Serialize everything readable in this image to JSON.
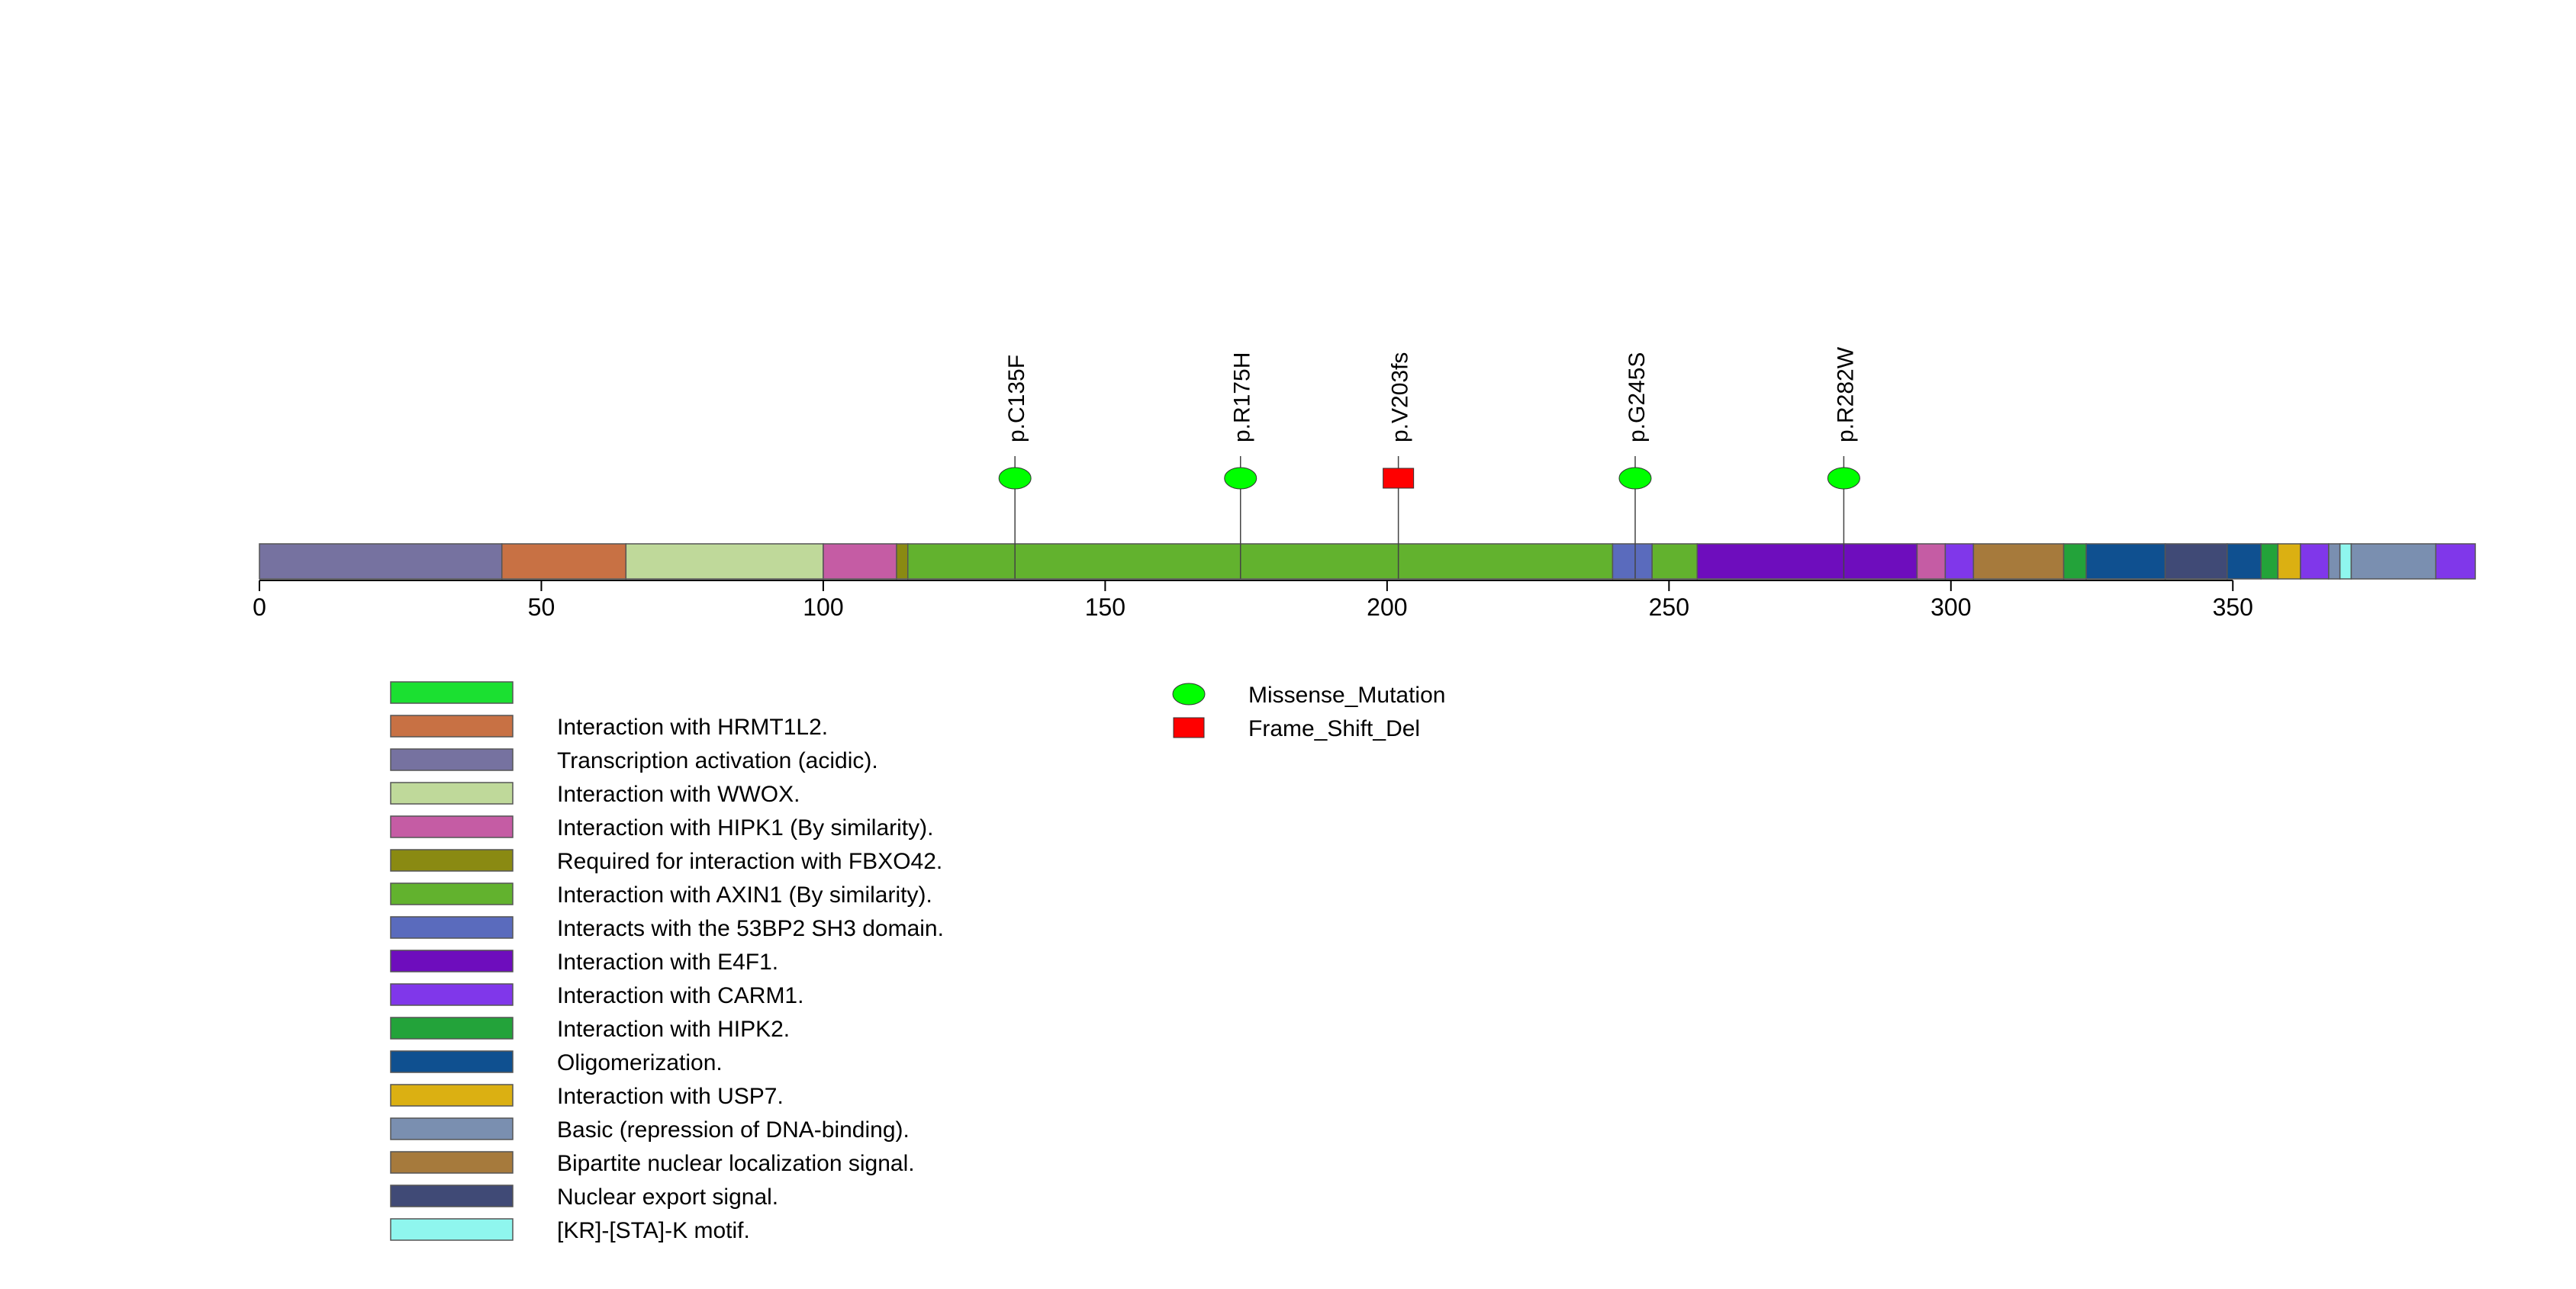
{
  "chart_data": {
    "type": "lollipop-protein-domain",
    "title": "",
    "x_axis": {
      "min": 0,
      "max": 393,
      "ticks": [
        0,
        50,
        100,
        150,
        200,
        250,
        300,
        350
      ],
      "tick_labels": [
        "0",
        "50",
        "100",
        "150",
        "200",
        "250",
        "300",
        "350"
      ],
      "label": ""
    },
    "protein_length": 393,
    "domains": [
      {
        "name": "Transcription activation (acidic).",
        "start": 0,
        "end": 43,
        "color": "#7672a0"
      },
      {
        "name": "Interaction with HRMT1L2.",
        "start": 43,
        "end": 65,
        "color": "#c87144"
      },
      {
        "name": "Interaction with WWOX.",
        "start": 65,
        "end": 100,
        "color": "#bfd99a"
      },
      {
        "name": "Interaction with HIPK1 (By similarity).",
        "start": 100,
        "end": 113,
        "color": "#c55ca4"
      },
      {
        "name": "Required for interaction with FBXO42.",
        "start": 113,
        "end": 115,
        "color": "#8a8a12"
      },
      {
        "name": "Interaction with AXIN1 (By similarity).",
        "start": 115,
        "end": 240,
        "color": "#62b22e"
      },
      {
        "name": "Interacts with the 53BP2 SH3 domain.",
        "start": 240,
        "end": 247,
        "color": "#5a6bbd"
      },
      {
        "name": "Interaction with AXIN1 (By similarity).",
        "start": 247,
        "end": 255,
        "color": "#62b22e"
      },
      {
        "name": "Interaction with E4F1.",
        "start": 255,
        "end": 294,
        "color": "#6e0dbd"
      },
      {
        "name": "Interaction with HIPK1 (By similarity).",
        "start": 294,
        "end": 299,
        "color": "#c55ca4"
      },
      {
        "name": "Interaction with CARM1.",
        "start": 299,
        "end": 304,
        "color": "#8037ea"
      },
      {
        "name": "Bipartite nuclear localization signal.",
        "start": 304,
        "end": 320,
        "color": "#a67a3c"
      },
      {
        "name": "Interaction with HIPK2.",
        "start": 320,
        "end": 324,
        "color": "#23a33a"
      },
      {
        "name": "Oligomerization.",
        "start": 324,
        "end": 338,
        "color": "#0f5090"
      },
      {
        "name": "Nuclear export signal.",
        "start": 338,
        "end": 349,
        "color": "#404a76"
      },
      {
        "name": "Oligomerization.",
        "start": 349,
        "end": 355,
        "color": "#0f5090"
      },
      {
        "name": "Interaction with HIPK2.",
        "start": 355,
        "end": 358,
        "color": "#23a33a"
      },
      {
        "name": "Interaction with USP7.",
        "start": 358,
        "end": 362,
        "color": "#dbb012"
      },
      {
        "name": "Interaction with CARM1.",
        "start": 362,
        "end": 367,
        "color": "#8037ea"
      },
      {
        "name": "Basic (repression of DNA-binding).",
        "start": 367,
        "end": 369,
        "color": "#7a8fb0"
      },
      {
        "name": "[KR]-[STA]-K motif.",
        "start": 369,
        "end": 371,
        "color": "#8ff6ee"
      },
      {
        "name": "Basic (repression of DNA-binding).",
        "start": 371,
        "end": 386,
        "color": "#7a8fb0"
      },
      {
        "name": "Interaction with CARM1.",
        "start": 386,
        "end": 393,
        "color": "#8037ea"
      }
    ],
    "mutations": [
      {
        "label": "p.C135F",
        "position": 134,
        "type": "Missense_Mutation"
      },
      {
        "label": "p.R175H",
        "position": 174,
        "type": "Missense_Mutation"
      },
      {
        "label": "p.V203fs",
        "position": 202,
        "type": "Frame_Shift_Del"
      },
      {
        "label": "p.G245S",
        "position": 244,
        "type": "Missense_Mutation"
      },
      {
        "label": "p.R282W",
        "position": 281,
        "type": "Missense_Mutation"
      }
    ],
    "domain_legend": [
      {
        "label": "",
        "color": "#1be031"
      },
      {
        "label": "Interaction with HRMT1L2.",
        "color": "#c87144"
      },
      {
        "label": "Transcription activation (acidic).",
        "color": "#7672a0"
      },
      {
        "label": "Interaction with WWOX.",
        "color": "#bfd99a"
      },
      {
        "label": "Interaction with HIPK1 (By similarity).",
        "color": "#c55ca4"
      },
      {
        "label": "Required for interaction with FBXO42.",
        "color": "#8a8a12"
      },
      {
        "label": "Interaction with AXIN1 (By similarity).",
        "color": "#62b22e"
      },
      {
        "label": "Interacts with the 53BP2 SH3 domain.",
        "color": "#5a6bbd"
      },
      {
        "label": "Interaction with E4F1.",
        "color": "#6e0dbd"
      },
      {
        "label": "Interaction with CARM1.",
        "color": "#8037ea"
      },
      {
        "label": "Interaction with HIPK2.",
        "color": "#23a33a"
      },
      {
        "label": "Oligomerization.",
        "color": "#0f5090"
      },
      {
        "label": "Interaction with USP7.",
        "color": "#dbb012"
      },
      {
        "label": "Basic (repression of DNA-binding).",
        "color": "#7a8fb0"
      },
      {
        "label": "Bipartite nuclear localization signal.",
        "color": "#a67a3c"
      },
      {
        "label": "Nuclear export signal.",
        "color": "#404a76"
      },
      {
        "label": "[KR]-[STA]-K motif.",
        "color": "#8ff6ee"
      }
    ],
    "mutation_legend": [
      {
        "label": "Missense_Mutation",
        "shape": "ellipse",
        "color": "#00ff00"
      },
      {
        "label": "Frame_Shift_Del",
        "shape": "square",
        "color": "#ff0000"
      }
    ]
  }
}
